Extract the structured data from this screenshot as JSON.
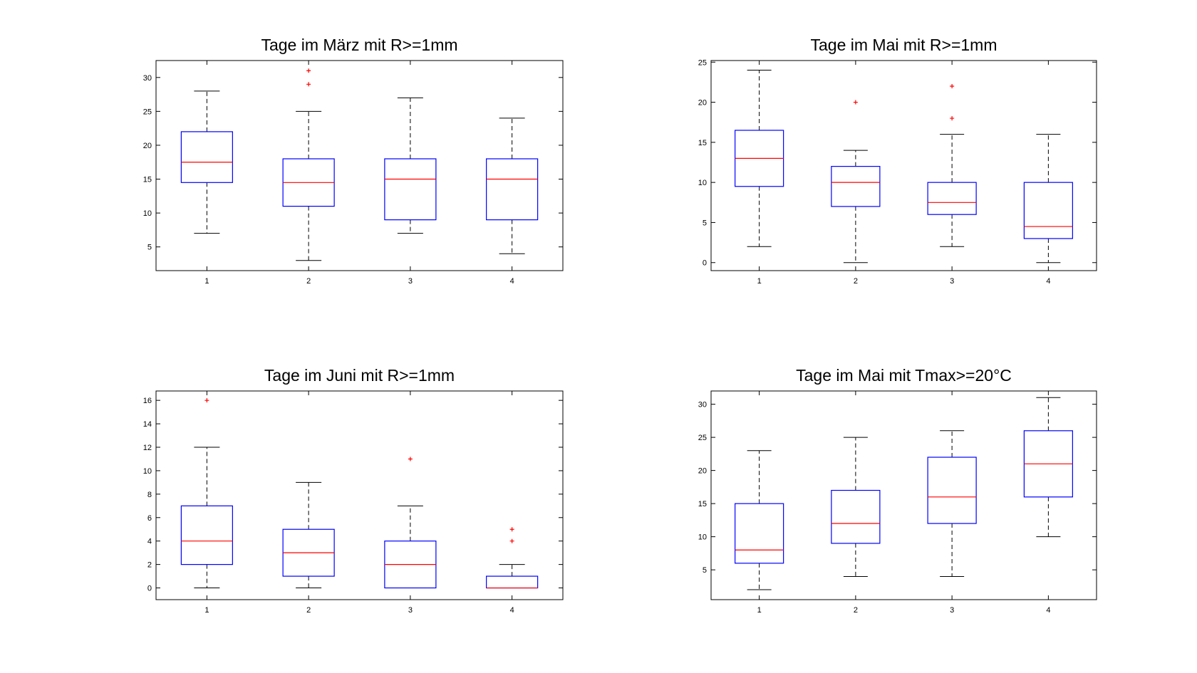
{
  "figure": {
    "background": "#ffffff"
  },
  "style": {
    "box_color": "#0000ff",
    "median_color": "#ff0000",
    "whisker_color": "#000000",
    "outlier_color": "#ff0000",
    "axes_color": "#000000"
  },
  "chart_data": [
    {
      "type": "boxplot",
      "title": "Tage im März mit R>=1mm",
      "xlabel": "",
      "ylabel": "",
      "categories": [
        "1",
        "2",
        "3",
        "4"
      ],
      "ylim": [
        1.5,
        32.5
      ],
      "yticks": [
        5,
        10,
        15,
        20,
        25,
        30
      ],
      "grid": false,
      "boxes": [
        {
          "whisker_low": 7,
          "q1": 14.5,
          "median": 17.5,
          "q3": 22,
          "whisker_high": 28,
          "outliers": []
        },
        {
          "whisker_low": 3,
          "q1": 11,
          "median": 14.5,
          "q3": 18,
          "whisker_high": 25,
          "outliers": [
            29,
            31
          ]
        },
        {
          "whisker_low": 7,
          "q1": 9,
          "median": 15,
          "q3": 18,
          "whisker_high": 27,
          "outliers": []
        },
        {
          "whisker_low": 4,
          "q1": 9,
          "median": 15,
          "q3": 18,
          "whisker_high": 24,
          "outliers": []
        }
      ]
    },
    {
      "type": "boxplot",
      "title": "Tage im Mai mit R>=1mm",
      "xlabel": "",
      "ylabel": "",
      "categories": [
        "1",
        "2",
        "3",
        "4"
      ],
      "ylim": [
        -1,
        25.2
      ],
      "yticks": [
        0,
        5,
        10,
        15,
        20,
        25
      ],
      "grid": false,
      "boxes": [
        {
          "whisker_low": 2,
          "q1": 9.5,
          "median": 13,
          "q3": 16.5,
          "whisker_high": 24,
          "outliers": []
        },
        {
          "whisker_low": 0,
          "q1": 7,
          "median": 10,
          "q3": 12,
          "whisker_high": 14,
          "outliers": [
            20
          ]
        },
        {
          "whisker_low": 2,
          "q1": 6,
          "median": 7.5,
          "q3": 10,
          "whisker_high": 16,
          "outliers": [
            18,
            22
          ]
        },
        {
          "whisker_low": 0,
          "q1": 3,
          "median": 4.5,
          "q3": 10,
          "whisker_high": 16,
          "outliers": []
        }
      ]
    },
    {
      "type": "boxplot",
      "title": "Tage im Juni mit R>=1mm",
      "xlabel": "",
      "ylabel": "",
      "categories": [
        "1",
        "2",
        "3",
        "4"
      ],
      "ylim": [
        -1,
        16.8
      ],
      "yticks": [
        0,
        2,
        4,
        6,
        8,
        10,
        12,
        14,
        16
      ],
      "grid": false,
      "boxes": [
        {
          "whisker_low": 0,
          "q1": 2,
          "median": 4,
          "q3": 7,
          "whisker_high": 12,
          "outliers": [
            16
          ]
        },
        {
          "whisker_low": 0,
          "q1": 1,
          "median": 3,
          "q3": 5,
          "whisker_high": 9,
          "outliers": []
        },
        {
          "whisker_low": 0,
          "q1": 0,
          "median": 2,
          "q3": 4,
          "whisker_high": 7,
          "outliers": [
            11
          ]
        },
        {
          "whisker_low": 0,
          "q1": 0,
          "median": 0,
          "q3": 1,
          "whisker_high": 2,
          "outliers": [
            4,
            5
          ]
        }
      ]
    },
    {
      "type": "boxplot",
      "title": "Tage im Mai mit Tmax>=20°C",
      "xlabel": "",
      "ylabel": "",
      "categories": [
        "1",
        "2",
        "3",
        "4"
      ],
      "ylim": [
        0.5,
        32
      ],
      "yticks": [
        5,
        10,
        15,
        20,
        25,
        30
      ],
      "grid": false,
      "boxes": [
        {
          "whisker_low": 2,
          "q1": 6,
          "median": 8,
          "q3": 15,
          "whisker_high": 23,
          "outliers": []
        },
        {
          "whisker_low": 4,
          "q1": 9,
          "median": 12,
          "q3": 17,
          "whisker_high": 25,
          "outliers": []
        },
        {
          "whisker_low": 4,
          "q1": 12,
          "median": 16,
          "q3": 22,
          "whisker_high": 26,
          "outliers": []
        },
        {
          "whisker_low": 10,
          "q1": 16,
          "median": 21,
          "q3": 26,
          "whisker_high": 31,
          "outliers": []
        }
      ]
    }
  ]
}
